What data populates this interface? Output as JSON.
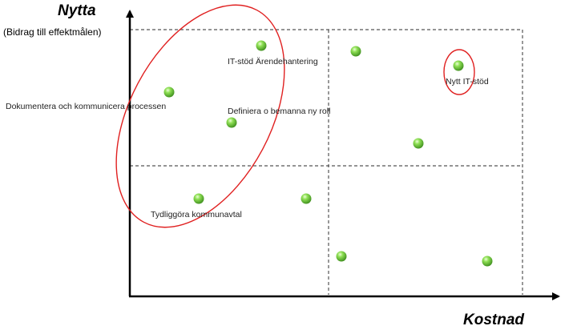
{
  "axes": {
    "y_title": "Nytta",
    "y_subtitle": "(Bidrag till effektmålen)",
    "x_title": "Kostnad"
  },
  "colors": {
    "axis": "#000000",
    "grid": "#555555",
    "highlight": "#e02020",
    "point_fill": "#7cd44a",
    "point_dark": "#3f8f1e"
  },
  "points": [
    {
      "id": "it-stod-arendehantering",
      "label": "IT-stöd Ärendehantering"
    },
    {
      "id": "point-upper-middle",
      "label": ""
    },
    {
      "id": "nytt-it-stod",
      "label": "Nytt IT-stöd"
    },
    {
      "id": "dokumentera-processen",
      "label": "Dokumentera och kommunicera processen"
    },
    {
      "id": "definiera-roll",
      "label": "Definiera o bemanna ny roll"
    },
    {
      "id": "point-right-middle",
      "label": ""
    },
    {
      "id": "tydliggora-kommunavtal",
      "label": "Tydliggöra kommunavtal"
    },
    {
      "id": "point-lower-center",
      "label": ""
    },
    {
      "id": "point-bottom-center",
      "label": ""
    },
    {
      "id": "point-bottom-right",
      "label": ""
    }
  ]
}
